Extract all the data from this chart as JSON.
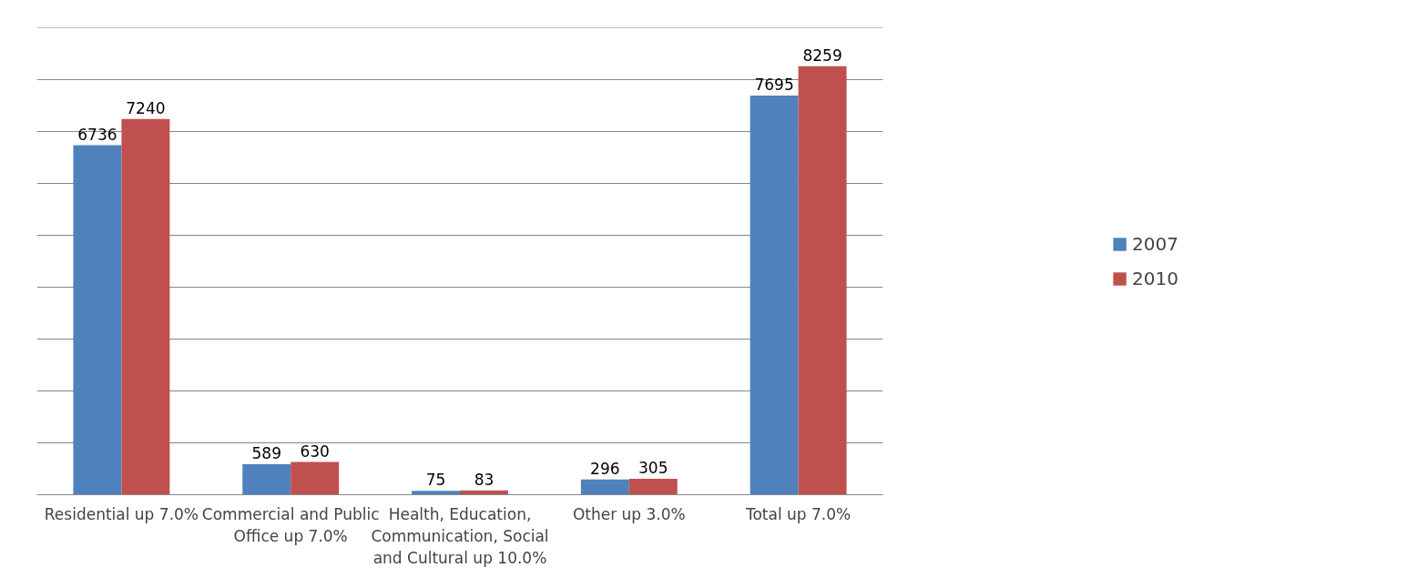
{
  "chart_data": {
    "type": "bar",
    "categories": [
      "Residential up 7.0%",
      "Commercial and Public Office up 7.0%",
      "Health, Education, Communication, Social and Cultural up 10.0%",
      "Other up 3.0%",
      "Total up 7.0%"
    ],
    "series": [
      {
        "name": "2007",
        "color": "#4f81bd",
        "values": [
          6736,
          589,
          75,
          296,
          7695
        ]
      },
      {
        "name": "2010",
        "color": "#c0504d",
        "values": [
          7240,
          630,
          83,
          305,
          8259
        ]
      }
    ],
    "ylim": [
      0,
      9000
    ],
    "yticks": [
      {
        "value": 0,
        "label": null
      },
      {
        "value": 1000,
        "label": null
      },
      {
        "value": 2000,
        "label": null
      },
      {
        "value": 3000,
        "label": null
      },
      {
        "value": 4000,
        "label": null
      },
      {
        "value": 5000,
        "label": null
      },
      {
        "value": 6000,
        "label": null
      },
      {
        "value": 7000,
        "label": null
      },
      {
        "value": 8000,
        "label": null
      },
      {
        "value": 9000,
        "label": null
      }
    ],
    "grid": "y",
    "tick_labels": "x",
    "data_labels": true,
    "legend": "right"
  }
}
